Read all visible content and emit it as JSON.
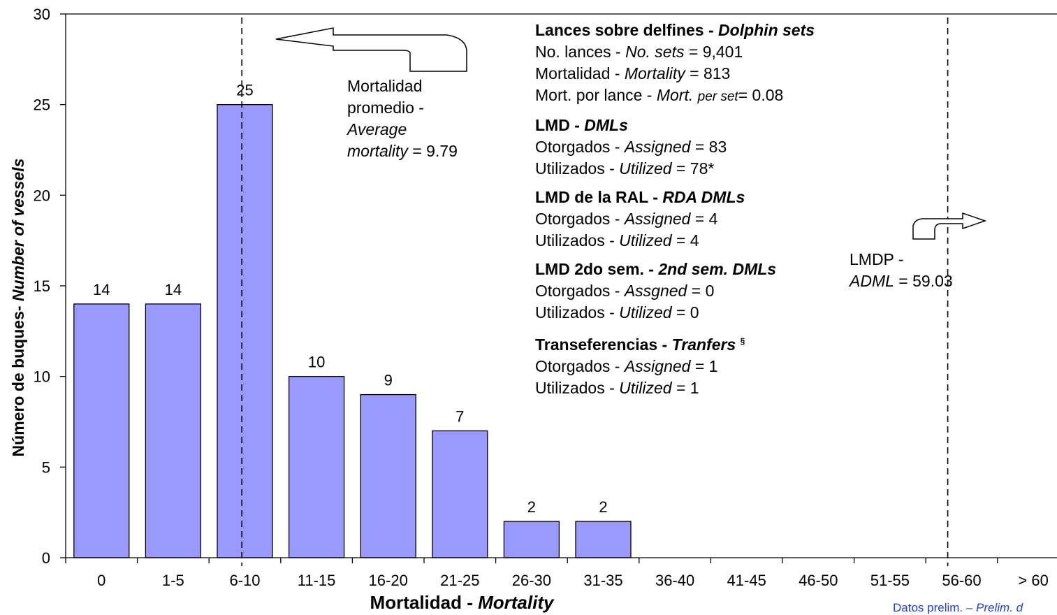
{
  "chart_data": {
    "type": "bar",
    "categories": [
      "0",
      "1-5",
      "6-10",
      "11-15",
      "16-20",
      "21-25",
      "26-30",
      "31-35",
      "36-40",
      "41-45",
      "46-50",
      "51-55",
      "56-60",
      "> 60"
    ],
    "values": [
      14,
      14,
      25,
      10,
      9,
      7,
      2,
      2,
      0,
      0,
      0,
      0,
      0,
      0
    ],
    "data_labels": [
      "14",
      "14",
      "25",
      "10",
      "9",
      "7",
      "2",
      "2",
      "",
      "",
      "",
      "",
      "",
      ""
    ],
    "xlabel": {
      "es": "Mortalidad - ",
      "en": "Mortality"
    },
    "ylabel": {
      "es": "Número de buques- ",
      "en": "Number of vessels"
    },
    "ylim": [
      0,
      30
    ],
    "yticks": [
      0,
      5,
      10,
      15,
      20,
      25,
      30
    ],
    "grid": false,
    "bar_color": "#9999ff",
    "reference_lines": [
      {
        "name": "average",
        "x_value": 9.79
      },
      {
        "name": "adml",
        "x_value": 59.03
      }
    ]
  },
  "annotations": {
    "average": {
      "line1": "Mortalidad",
      "line2": "promedio -",
      "line3": "Average",
      "line4_italic": "mortality",
      "line4_value": " = 9.79"
    },
    "lmdp": {
      "line1": "LMDP -",
      "line2_italic": "ADML",
      "line2_value": " =  59.03"
    }
  },
  "summary": {
    "dolphin_sets": {
      "title_es": "Lances sobre delfines - ",
      "title_en": "Dolphin sets",
      "row1": {
        "es": "No. lances - ",
        "en": "No. sets",
        "value": " = 9,401"
      },
      "row2": {
        "es": "Mortalidad - ",
        "en": "Mortality",
        "value": " = 813"
      },
      "row3": {
        "es": "Mort. por lance - ",
        "en_a": "Mort. ",
        "en_b": "per set",
        "value": "= 0.08"
      }
    },
    "dmls": {
      "title_es": "LMD - ",
      "title_en": "DMLs",
      "row1": {
        "es": "Otorgados - ",
        "en": "Assigned",
        "value": " = 83"
      },
      "row2": {
        "es": "Utilizados - ",
        "en": "Utilized",
        "value": " = 78*"
      }
    },
    "rda_dmls": {
      "title_es": "LMD de la RAL - ",
      "title_en": "RDA DMLs",
      "row1": {
        "es": "Otorgados - ",
        "en": "Assigned",
        "value": " = 4"
      },
      "row2": {
        "es": "Utilizados - ",
        "en": "Utilized",
        "value": " = 4"
      }
    },
    "second_sem": {
      "title_es": "LMD 2do sem.  - ",
      "title_en": "2nd sem. DMLs",
      "row1": {
        "es": "Otorgados - ",
        "en": "Assgned",
        "value": " = 0"
      },
      "row2": {
        "es": "Utilizados - ",
        "en": "Utilized",
        "value": " = 0"
      }
    },
    "transfers": {
      "title_es": "Transeferencias -  ",
      "title_en": "Tranfers",
      "mark": "§",
      "row1": {
        "es": "Otorgados - ",
        "en": "Assigned",
        "value": " = 1"
      },
      "row2": {
        "es": "Utilizados - ",
        "en": "Utilized",
        "value": " = 1"
      }
    }
  },
  "footnote": {
    "es": "Datos prelim. ",
    "en": "– Prelim. d"
  }
}
